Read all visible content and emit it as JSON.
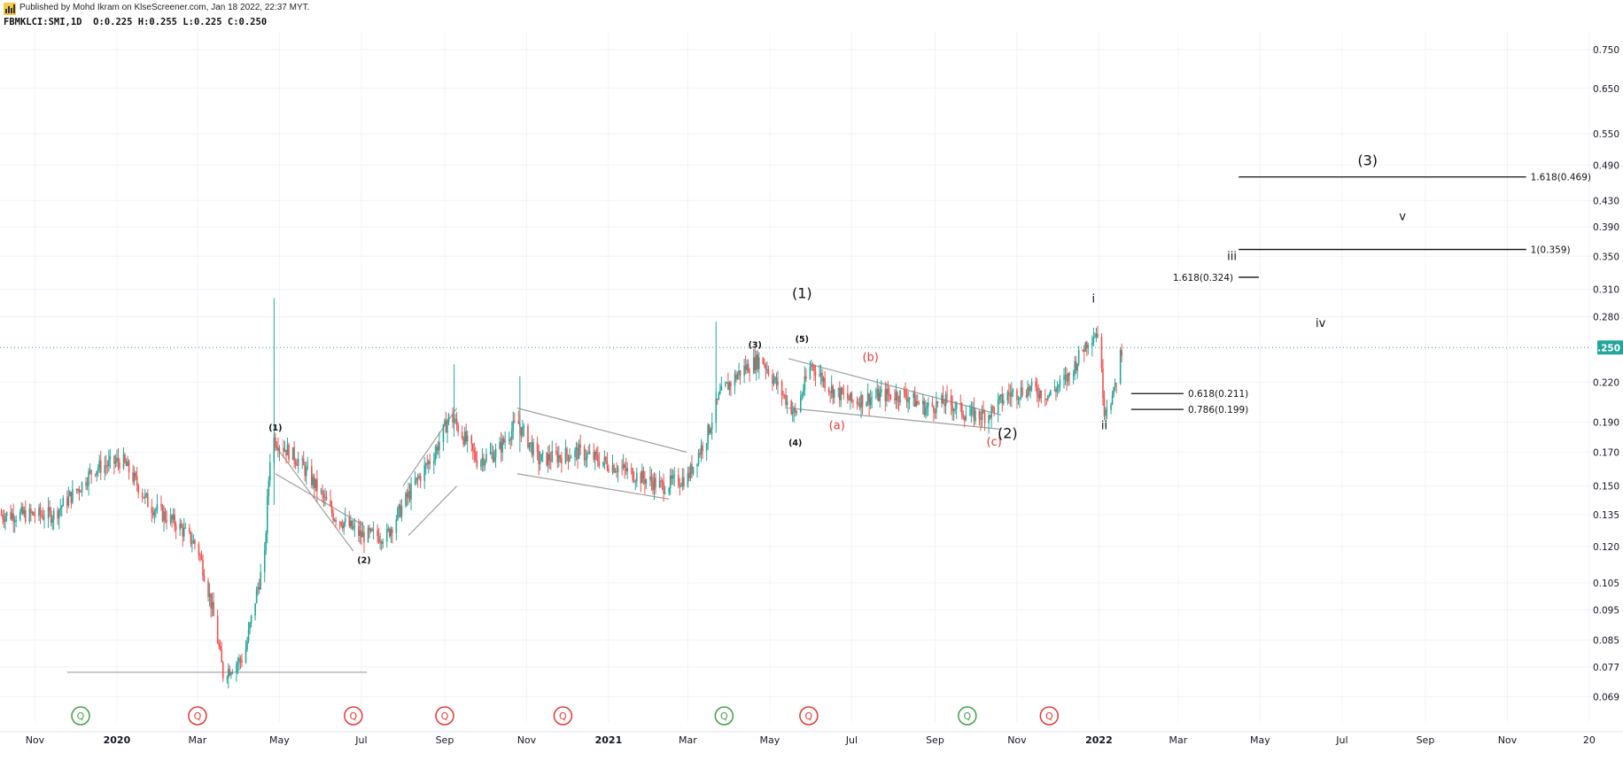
{
  "header": {
    "published": "Published by Mohd Ikram on KlseScreener.com, Jan 18 2022, 22:37 MYT.",
    "symbol": "FBMKLCI:SMI,1D",
    "ohlc": "O:0.225 H:0.255 L:0.225 C:0.250"
  },
  "colors": {
    "up": "#26a69a",
    "down": "#ef5350",
    "grid": "#f0f3fa",
    "axis_text": "#131722",
    "guide": "#9e9e9e",
    "price_badge": "#26a69a",
    "wave_red": "#e53935"
  },
  "chart_data": {
    "type": "candlestick",
    "title": "",
    "y_scale": "log",
    "y_ticks": [
      0.069,
      0.077,
      0.085,
      0.095,
      0.105,
      0.12,
      0.135,
      0.15,
      0.17,
      0.19,
      0.22,
      0.28,
      0.31,
      0.35,
      0.39,
      0.43,
      0.49,
      0.55,
      0.65,
      0.75
    ],
    "y_tick_labels": [
      "0.069",
      "0.077",
      "0.085",
      "0.095",
      "0.105",
      "0.120",
      "0.135",
      "0.150",
      "0.170",
      "0.190",
      "0.220",
      "0.280",
      "0.310",
      "0.350",
      "0.390",
      "0.430",
      "0.490",
      "0.550",
      "0.650",
      "0.750"
    ],
    "last_price": 0.25,
    "last_price_label": "0.250",
    "x_ticks": [
      {
        "date": "2019-11-01",
        "label": "Nov",
        "bold": false
      },
      {
        "date": "2020-01-01",
        "label": "2020",
        "bold": true
      },
      {
        "date": "2020-03-01",
        "label": "Mar",
        "bold": false
      },
      {
        "date": "2020-05-01",
        "label": "May",
        "bold": false
      },
      {
        "date": "2020-07-01",
        "label": "Jul",
        "bold": false
      },
      {
        "date": "2020-09-01",
        "label": "Sep",
        "bold": false
      },
      {
        "date": "2020-11-01",
        "label": "Nov",
        "bold": false
      },
      {
        "date": "2021-01-01",
        "label": "2021",
        "bold": true
      },
      {
        "date": "2021-03-01",
        "label": "Mar",
        "bold": false
      },
      {
        "date": "2021-05-01",
        "label": "May",
        "bold": false
      },
      {
        "date": "2021-07-01",
        "label": "Jul",
        "bold": false
      },
      {
        "date": "2021-09-01",
        "label": "Sep",
        "bold": false
      },
      {
        "date": "2021-11-01",
        "label": "Nov",
        "bold": false
      },
      {
        "date": "2022-01-01",
        "label": "2022",
        "bold": true
      },
      {
        "date": "2022-03-01",
        "label": "Mar",
        "bold": false
      },
      {
        "date": "2022-05-01",
        "label": "May",
        "bold": false
      },
      {
        "date": "2022-07-01",
        "label": "Jul",
        "bold": false
      },
      {
        "date": "2022-09-01",
        "label": "Sep",
        "bold": false
      },
      {
        "date": "2022-11-01",
        "label": "Nov",
        "bold": false
      },
      {
        "date": "2023-01-01",
        "label": "20",
        "bold": false
      }
    ],
    "price_path": [
      [
        "2019-10-06",
        0.135
      ],
      [
        "2019-11-15",
        0.135
      ],
      [
        "2019-12-05",
        0.15
      ],
      [
        "2019-12-15",
        0.16
      ],
      [
        "2020-01-05",
        0.165
      ],
      [
        "2020-01-25",
        0.14
      ],
      [
        "2020-02-15",
        0.13
      ],
      [
        "2020-03-01",
        0.12
      ],
      [
        "2020-03-10",
        0.1
      ],
      [
        "2020-03-20",
        0.075
      ],
      [
        "2020-04-05",
        0.08
      ],
      [
        "2020-04-20",
        0.115
      ],
      [
        "2020-04-25",
        0.18
      ],
      [
        "2020-05-15",
        0.165
      ],
      [
        "2020-06-10",
        0.135
      ],
      [
        "2020-07-01",
        0.125
      ],
      [
        "2020-07-20",
        0.125
      ],
      [
        "2020-08-01",
        0.14
      ],
      [
        "2020-08-25",
        0.17
      ],
      [
        "2020-09-05",
        0.195
      ],
      [
        "2020-09-25",
        0.165
      ],
      [
        "2020-10-10",
        0.17
      ],
      [
        "2020-10-25",
        0.19
      ],
      [
        "2020-11-10",
        0.165
      ],
      [
        "2020-12-10",
        0.17
      ],
      [
        "2021-01-10",
        0.16
      ],
      [
        "2021-01-25",
        0.155
      ],
      [
        "2021-02-10",
        0.15
      ],
      [
        "2021-03-01",
        0.155
      ],
      [
        "2021-03-15",
        0.18
      ],
      [
        "2021-03-25",
        0.21
      ],
      [
        "2021-04-10",
        0.23
      ],
      [
        "2021-04-25",
        0.24
      ],
      [
        "2021-05-05",
        0.22
      ],
      [
        "2021-05-20",
        0.195
      ],
      [
        "2021-06-01",
        0.235
      ],
      [
        "2021-06-15",
        0.215
      ],
      [
        "2021-07-01",
        0.205
      ],
      [
        "2021-07-25",
        0.21
      ],
      [
        "2021-08-10",
        0.21
      ],
      [
        "2021-08-25",
        0.2
      ],
      [
        "2021-09-10",
        0.205
      ],
      [
        "2021-09-25",
        0.195
      ],
      [
        "2021-10-10",
        0.195
      ],
      [
        "2021-10-25",
        0.21
      ],
      [
        "2021-11-10",
        0.215
      ],
      [
        "2021-11-25",
        0.21
      ],
      [
        "2021-12-10",
        0.225
      ],
      [
        "2021-12-25",
        0.26
      ],
      [
        "2021-12-31",
        0.265
      ],
      [
        "2022-01-05",
        0.2
      ],
      [
        "2022-01-12",
        0.21
      ],
      [
        "2022-01-18",
        0.25
      ]
    ],
    "trendlines": [
      {
        "points": [
          [
            "2019-11-25",
            0.0755
          ],
          [
            "2020-07-05",
            0.0755
          ]
        ]
      },
      {
        "points": [
          [
            "2020-04-28",
            0.174
          ],
          [
            "2020-06-25",
            0.118
          ]
        ]
      },
      {
        "points": [
          [
            "2020-04-28",
            0.157
          ],
          [
            "2020-07-02",
            0.13
          ]
        ]
      },
      {
        "points": [
          [
            "2020-08-01",
            0.15
          ],
          [
            "2020-09-10",
            0.2
          ]
        ]
      },
      {
        "points": [
          [
            "2020-08-05",
            0.125
          ],
          [
            "2020-09-10",
            0.15
          ]
        ]
      },
      {
        "points": [
          [
            "2020-10-25",
            0.2
          ],
          [
            "2021-02-28",
            0.17
          ]
        ]
      },
      {
        "points": [
          [
            "2020-10-25",
            0.157
          ],
          [
            "2021-02-15",
            0.143
          ]
        ]
      },
      {
        "points": [
          [
            "2021-05-15",
            0.24
          ],
          [
            "2021-10-20",
            0.195
          ]
        ]
      },
      {
        "points": [
          [
            "2021-05-15",
            0.2
          ],
          [
            "2021-10-20",
            0.185
          ]
        ]
      }
    ],
    "projection_lines": [
      {
        "start": "2022-04-15",
        "end": "2022-11-15",
        "y": 0.469,
        "label": "1.618(0.469)",
        "label_side": "right"
      },
      {
        "start": "2022-04-15",
        "end": "2022-11-15",
        "y": 0.359,
        "label": "1(0.359)",
        "label_side": "right"
      },
      {
        "start": "2022-04-15",
        "end": "2022-04-30",
        "y": 0.324,
        "label": "1.618(0.324)",
        "label_side": "left"
      },
      {
        "start": "2022-01-25",
        "end": "2022-03-05",
        "y": 0.211,
        "label": "0.618(0.211)",
        "label_side": "right"
      },
      {
        "start": "2022-01-25",
        "end": "2022-03-05",
        "y": 0.199,
        "label": "0.786(0.199)",
        "label_side": "right"
      }
    ],
    "wave_labels": [
      {
        "text": "(1)",
        "date": "2020-04-28",
        "y": 0.184,
        "size": "small",
        "color": "black"
      },
      {
        "text": "(2)",
        "date": "2020-07-03",
        "y": 0.113,
        "size": "small",
        "color": "black"
      },
      {
        "text": "(3)",
        "date": "2021-04-20",
        "y": 0.25,
        "size": "small",
        "color": "black"
      },
      {
        "text": "(4)",
        "date": "2021-05-20",
        "y": 0.174,
        "size": "small",
        "color": "black"
      },
      {
        "text": "(5)",
        "date": "2021-05-25",
        "y": 0.255,
        "size": "small",
        "color": "black"
      },
      {
        "text": "(1)",
        "date": "2021-05-25",
        "y": 0.3,
        "size": "large",
        "color": "black"
      },
      {
        "text": "(a)",
        "date": "2021-06-20",
        "y": 0.185,
        "size": "medium",
        "color": "red"
      },
      {
        "text": "(b)",
        "date": "2021-07-15",
        "y": 0.238,
        "size": "medium",
        "color": "red"
      },
      {
        "text": "(c)",
        "date": "2021-10-15",
        "y": 0.174,
        "size": "medium",
        "color": "red"
      },
      {
        "text": "(2)",
        "date": "2021-10-25",
        "y": 0.179,
        "size": "large",
        "color": "black"
      },
      {
        "text": "i",
        "date": "2021-12-28",
        "y": 0.295,
        "size": "medium",
        "color": "black"
      },
      {
        "text": "ii",
        "date": "2022-01-05",
        "y": 0.185,
        "size": "medium",
        "color": "black"
      },
      {
        "text": "iii",
        "date": "2022-04-10",
        "y": 0.345,
        "size": "medium",
        "color": "black"
      },
      {
        "text": "iv",
        "date": "2022-06-15",
        "y": 0.27,
        "size": "medium",
        "color": "black"
      },
      {
        "text": "v",
        "date": "2022-08-15",
        "y": 0.4,
        "size": "medium",
        "color": "black"
      },
      {
        "text": "(3)",
        "date": "2022-07-20",
        "y": 0.49,
        "size": "large",
        "color": "black"
      }
    ],
    "event_markers": [
      {
        "date": "2019-12-05",
        "color": "green",
        "label": "Q"
      },
      {
        "date": "2020-03-01",
        "color": "red",
        "label": "Q"
      },
      {
        "date": "2020-06-25",
        "color": "red",
        "label": "Q"
      },
      {
        "date": "2020-09-01",
        "color": "red",
        "label": "Q"
      },
      {
        "date": "2020-11-28",
        "color": "red",
        "label": "Q"
      },
      {
        "date": "2021-03-28",
        "color": "green",
        "label": "Q"
      },
      {
        "date": "2021-05-30",
        "color": "red",
        "label": "Q"
      },
      {
        "date": "2021-09-25",
        "color": "green",
        "label": "Q"
      },
      {
        "date": "2021-11-25",
        "color": "red",
        "label": "Q"
      }
    ]
  }
}
